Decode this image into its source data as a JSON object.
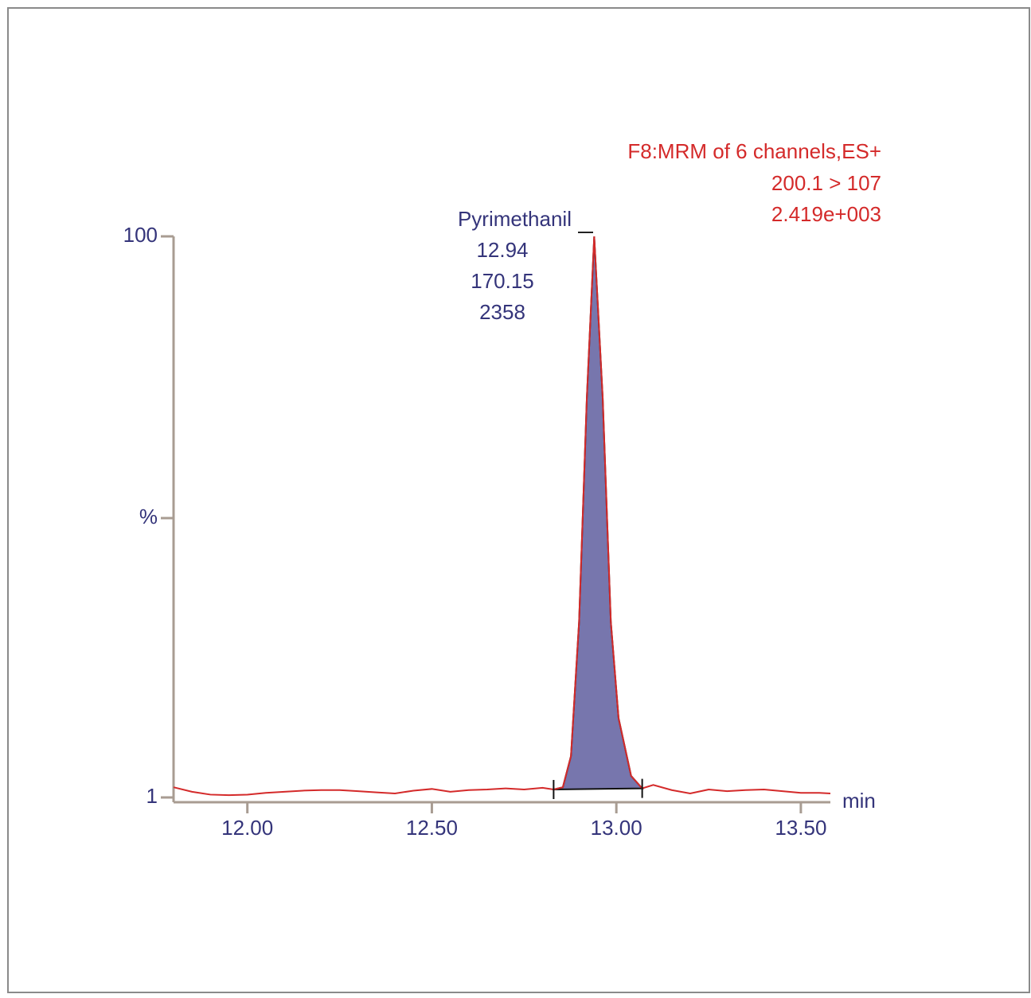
{
  "chart_data": {
    "type": "chromatogram",
    "info_lines": [
      "F8:MRM of 6 channels,ES+",
      "200.1 > 107",
      "2.419e+003"
    ],
    "peak_annotation": {
      "name": "Pyrimethanil",
      "retention_time": 12.94,
      "area": 170.15,
      "height": 2358
    },
    "peak_range": [
      12.83,
      13.07
    ],
    "x_label": "min",
    "y_label": "%",
    "xlim": [
      11.8,
      13.58
    ],
    "xticks": [
      {
        "value": 12,
        "label": "12.00"
      },
      {
        "value": 12.5,
        "label": "12.50"
      },
      {
        "value": 13,
        "label": "13.00"
      },
      {
        "value": 13.5,
        "label": "13.50"
      }
    ],
    "ylim": [
      1,
      100
    ],
    "yticks": [
      1,
      100
    ],
    "series": [
      {
        "color": "#d42a2a",
        "fill": "#7776ad",
        "x": [
          11.8,
          11.85,
          11.9,
          11.95,
          12.0,
          12.05,
          12.1,
          12.15,
          12.2,
          12.25,
          12.3,
          12.35,
          12.4,
          12.45,
          12.5,
          12.55,
          12.6,
          12.65,
          12.7,
          12.75,
          12.8,
          12.83,
          12.855,
          12.877,
          12.899,
          12.92,
          12.94,
          12.963,
          12.985,
          13.006,
          13.04,
          13.07,
          13.1,
          13.15,
          13.2,
          13.25,
          13.3,
          13.35,
          13.4,
          13.45,
          13.5,
          13.55,
          13.58
        ],
        "values": [
          2.8,
          2.0,
          1.5,
          1.4,
          1.5,
          1.8,
          2.0,
          2.2,
          2.3,
          2.3,
          2.1,
          1.9,
          1.7,
          2.2,
          2.5,
          2.0,
          2.3,
          2.4,
          2.6,
          2.4,
          2.7,
          2.4,
          2.8,
          8.3,
          32,
          71.5,
          100,
          71.5,
          32,
          15,
          4.8,
          2.6,
          3.2,
          2.3,
          1.7,
          2.4,
          2.1,
          2.3,
          2.4,
          2.1,
          1.8,
          1.8,
          1.7
        ]
      }
    ]
  }
}
